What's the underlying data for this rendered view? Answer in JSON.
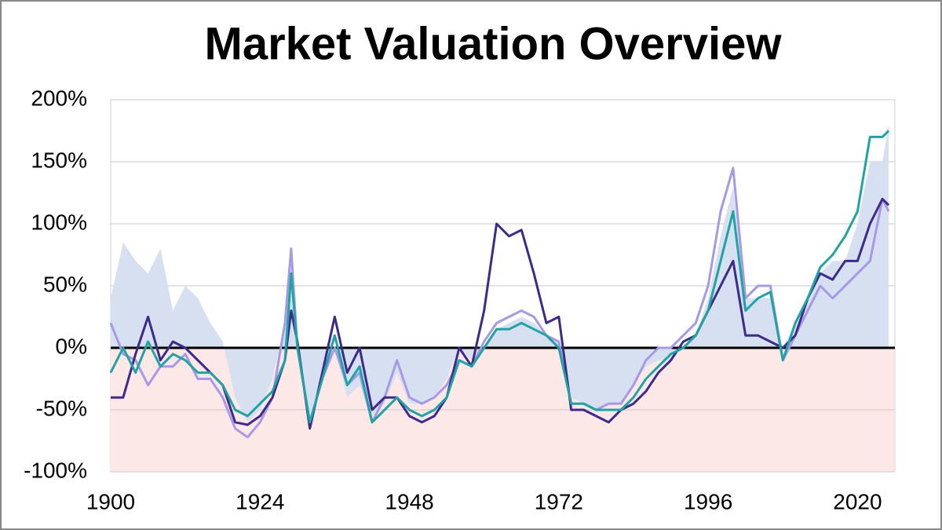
{
  "chart_data": {
    "type": "line",
    "title": "Market Valuation Overview",
    "x": [
      1900,
      1902,
      1904,
      1906,
      1908,
      1910,
      1912,
      1914,
      1916,
      1918,
      1920,
      1922,
      1924,
      1926,
      1928,
      1929,
      1930,
      1932,
      1934,
      1936,
      1938,
      1940,
      1942,
      1944,
      1946,
      1948,
      1950,
      1952,
      1954,
      1956,
      1958,
      1960,
      1962,
      1964,
      1966,
      1968,
      1970,
      1972,
      1974,
      1976,
      1978,
      1980,
      1982,
      1984,
      1986,
      1988,
      1990,
      1992,
      1994,
      1996,
      1998,
      2000,
      2002,
      2004,
      2006,
      2008,
      2010,
      2012,
      2014,
      2016,
      2018,
      2020,
      2022,
      2024,
      2025
    ],
    "series": [
      {
        "kind": "area",
        "color": "#d6e0f0",
        "values": [
          40,
          85,
          70,
          60,
          80,
          30,
          50,
          40,
          20,
          5,
          -40,
          -60,
          -50,
          -25,
          20,
          75,
          0,
          -60,
          -20,
          0,
          -40,
          -30,
          -55,
          -45,
          -20,
          -45,
          -45,
          -40,
          -25,
          0,
          -10,
          0,
          15,
          20,
          25,
          20,
          10,
          5,
          -40,
          -45,
          -50,
          -45,
          -45,
          -30,
          -15,
          -10,
          -10,
          0,
          10,
          40,
          90,
          130,
          40,
          40,
          40,
          0,
          20,
          40,
          60,
          70,
          70,
          100,
          150,
          150,
          180
        ]
      },
      {
        "color": "#a899e6",
        "values": [
          20,
          -5,
          -10,
          -30,
          -15,
          -15,
          -5,
          -25,
          -25,
          -40,
          -65,
          -72,
          -60,
          -40,
          20,
          80,
          0,
          -60,
          -25,
          0,
          -30,
          -20,
          -60,
          -40,
          -10,
          -40,
          -45,
          -40,
          -30,
          -10,
          -15,
          5,
          20,
          25,
          30,
          25,
          10,
          5,
          -45,
          -45,
          -50,
          -45,
          -45,
          -30,
          -10,
          0,
          0,
          10,
          20,
          50,
          110,
          145,
          40,
          50,
          50,
          -10,
          10,
          30,
          50,
          40,
          50,
          60,
          70,
          120,
          110
        ]
      },
      {
        "color": "#3d2a8a",
        "values": [
          -40,
          -40,
          -5,
          25,
          -10,
          5,
          0,
          -10,
          -20,
          -30,
          -60,
          -62,
          -55,
          -40,
          -10,
          30,
          5,
          -65,
          -20,
          25,
          -20,
          0,
          -50,
          -40,
          -40,
          -55,
          -60,
          -55,
          -40,
          0,
          -15,
          30,
          100,
          90,
          95,
          60,
          20,
          25,
          -50,
          -50,
          -55,
          -60,
          -50,
          -45,
          -35,
          -20,
          -10,
          5,
          10,
          30,
          50,
          70,
          10,
          10,
          5,
          0,
          10,
          40,
          60,
          55,
          70,
          70,
          100,
          120,
          115
        ]
      },
      {
        "color": "#1fa3a3",
        "values": [
          -20,
          0,
          -20,
          5,
          -15,
          -5,
          -10,
          -20,
          -20,
          -30,
          -50,
          -55,
          -45,
          -35,
          -10,
          60,
          0,
          -60,
          -25,
          10,
          -30,
          -15,
          -60,
          -50,
          -40,
          -50,
          -55,
          -50,
          -40,
          -10,
          -15,
          0,
          15,
          15,
          20,
          15,
          10,
          0,
          -45,
          -45,
          -50,
          -50,
          -50,
          -40,
          -25,
          -15,
          -5,
          0,
          10,
          30,
          70,
          110,
          30,
          40,
          45,
          -10,
          20,
          40,
          65,
          75,
          90,
          110,
          170,
          170,
          175
        ]
      }
    ],
    "xlim": [
      1900,
      2026
    ],
    "xticks": [
      1900,
      1924,
      1948,
      1972,
      1996,
      2020
    ],
    "ylim": [
      -100,
      200
    ],
    "yticks": [
      {
        "value": -100,
        "label": "-100%"
      },
      {
        "value": -50,
        "label": "-50%"
      },
      {
        "value": 0,
        "label": "0%"
      },
      {
        "value": 50,
        "label": "50%"
      },
      {
        "value": 100,
        "label": "100%"
      },
      {
        "value": 150,
        "label": "150%"
      },
      {
        "value": 200,
        "label": "200%"
      }
    ],
    "grid": true
  }
}
